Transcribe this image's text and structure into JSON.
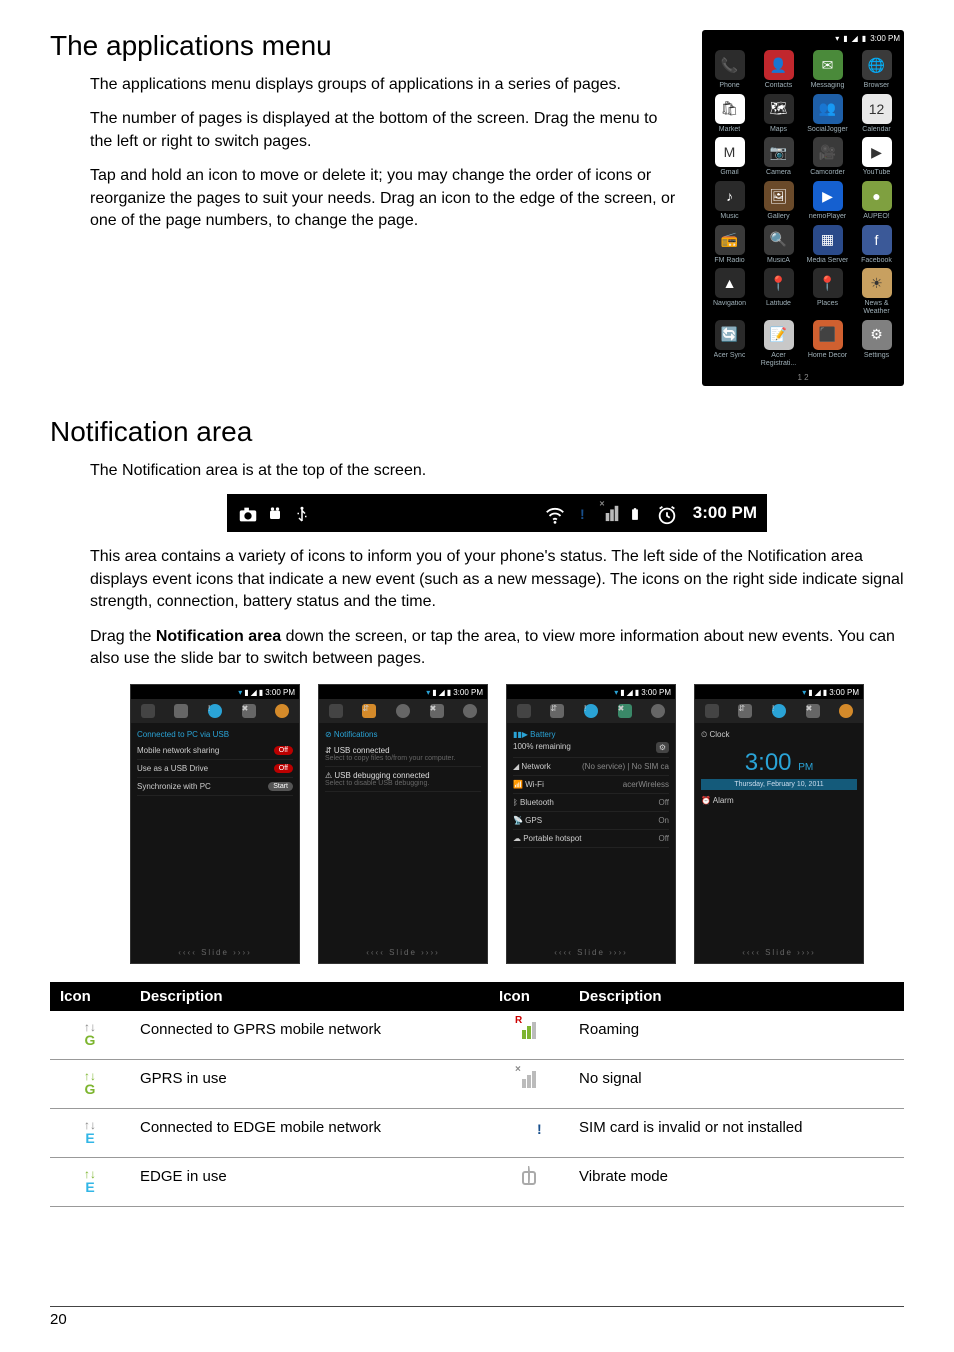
{
  "page_number": "20",
  "section1": {
    "heading": "The applications menu",
    "p1": "The applications menu displays groups of applications in a series of pages.",
    "p2": "The number of pages is displayed at the bottom of the screen. Drag the menu to the left or right to switch pages.",
    "p3": "Tap and hold an icon to move or delete it; you may change the order of icons or reorganize the pages to suit your needs. Drag an icon to the edge of the screen, or one of the page numbers, to change the page."
  },
  "apps_menu": {
    "status_time": "3:00 PM",
    "pager": "1   2",
    "items": [
      {
        "label": "Phone",
        "bg": "#2c2c2c",
        "glyph": "📞"
      },
      {
        "label": "Contacts",
        "bg": "#c1272d",
        "glyph": "👤"
      },
      {
        "label": "Messaging",
        "bg": "#4a8a3a",
        "glyph": "✉"
      },
      {
        "label": "Browser",
        "bg": "#3a3a3a",
        "glyph": "🌐"
      },
      {
        "label": "Market",
        "bg": "#ffffff",
        "glyph": "🛍"
      },
      {
        "label": "Maps",
        "bg": "#2a2a2a",
        "glyph": "🗺"
      },
      {
        "label": "SocialJogger",
        "bg": "#1e5fa8",
        "glyph": "👥"
      },
      {
        "label": "Calendar",
        "bg": "#e8e8e8",
        "glyph": "12"
      },
      {
        "label": "Gmail",
        "bg": "#ffffff",
        "glyph": "M"
      },
      {
        "label": "Camera",
        "bg": "#3a3a3a",
        "glyph": "📷"
      },
      {
        "label": "Camcorder",
        "bg": "#3a3a3a",
        "glyph": "🎥"
      },
      {
        "label": "YouTube",
        "bg": "#ffffff",
        "glyph": "▶"
      },
      {
        "label": "Music",
        "bg": "#2a2a2a",
        "glyph": "♪"
      },
      {
        "label": "Gallery",
        "bg": "#6a4a2a",
        "glyph": "🖼"
      },
      {
        "label": "nemoPlayer",
        "bg": "#1560d0",
        "glyph": "▶"
      },
      {
        "label": "AUPEO!",
        "bg": "#7fa040",
        "glyph": "●"
      },
      {
        "label": "FM Radio",
        "bg": "#3a3a3a",
        "glyph": "📻"
      },
      {
        "label": "MusicA",
        "bg": "#3a3a3a",
        "glyph": "🔍"
      },
      {
        "label": "Media Server",
        "bg": "#2a4a8a",
        "glyph": "▦"
      },
      {
        "label": "Facebook",
        "bg": "#3b5998",
        "glyph": "f"
      },
      {
        "label": "Navigation",
        "bg": "#2a2a2a",
        "glyph": "▲"
      },
      {
        "label": "Latitude",
        "bg": "#2a2a2a",
        "glyph": "📍"
      },
      {
        "label": "Places",
        "bg": "#2a2a2a",
        "glyph": "📍"
      },
      {
        "label": "News & Weather",
        "bg": "#c8a060",
        "glyph": "☀"
      },
      {
        "label": "Acer Sync",
        "bg": "#2a2a2a",
        "glyph": "🔄"
      },
      {
        "label": "Acer Registrati...",
        "bg": "#c8c8c8",
        "glyph": "📝"
      },
      {
        "label": "Home Decor",
        "bg": "#d06030",
        "glyph": "⬛"
      },
      {
        "label": "Settings",
        "bg": "#808080",
        "glyph": "⚙"
      }
    ]
  },
  "section2": {
    "heading": "Notification area",
    "p1": "The Notification area is at the top of the screen.",
    "p2": "This area contains a variety of icons to inform you of your phone's status. The left side of the Notification area displays event icons that indicate a new event (such as a new message). The icons on the right side indicate signal strength, connection, battery status and the time.",
    "p3_a": "Drag the ",
    "p3_b": "Notification area",
    "p3_c": " down the screen, or tap the area, to view more information about new events. You can also use the slide bar to switch between pages."
  },
  "notif_bar": {
    "time": "3:00 PM"
  },
  "thumbs": {
    "status_time": "3:00 PM",
    "slide": "‹‹‹‹     Slide     ››››",
    "panel1": {
      "title": "Connected to PC via USB",
      "rows": [
        {
          "label": "Mobile network sharing",
          "chip": "Off",
          "chipClass": "chip"
        },
        {
          "label": "Use as a USB Drive",
          "chip": "Off",
          "chipClass": "chip"
        },
        {
          "label": "Synchronize with PC",
          "chip": "Start",
          "chipClass": "chip gray"
        }
      ]
    },
    "panel2": {
      "title": "⊘  Notifications",
      "rows": [
        {
          "label": "⇵  USB connected",
          "sub": "Select to copy files to/from your computer."
        },
        {
          "label": "⚠  USB debugging connected",
          "sub": "Select to disable USB debugging."
        }
      ]
    },
    "panel3": {
      "title": "▮▮▶  Battery",
      "sub": "100% remaining",
      "gear": "⚙",
      "rows": [
        {
          "label": "◢ Network",
          "val": "(No service)  |  No SIM ca"
        },
        {
          "label": "📶 Wi-Fi",
          "val": "acerWireless"
        },
        {
          "label": "ᛒ Bluetooth",
          "val": "Off"
        },
        {
          "label": "📡 GPS",
          "val": "On"
        },
        {
          "label": "☁ Portable hotspot",
          "val": "Off"
        }
      ]
    },
    "panel4": {
      "clock_label": "⏲ Clock",
      "time": "3:00",
      "ampm": "PM",
      "date": "Thursday, February 10, 2011",
      "alarm": "⏰ Alarm"
    }
  },
  "icon_table": {
    "headers": [
      "Icon",
      "Description",
      "Icon",
      "Description"
    ],
    "rows": [
      {
        "d1": "Connected to GPRS mobile network",
        "d2": "Roaming"
      },
      {
        "d1": "GPRS in use",
        "d2": "No signal"
      },
      {
        "d1": "Connected to EDGE mobile network",
        "d2": "SIM card is invalid or not installed"
      },
      {
        "d1": "EDGE in use",
        "d2": "Vibrate mode"
      }
    ]
  }
}
